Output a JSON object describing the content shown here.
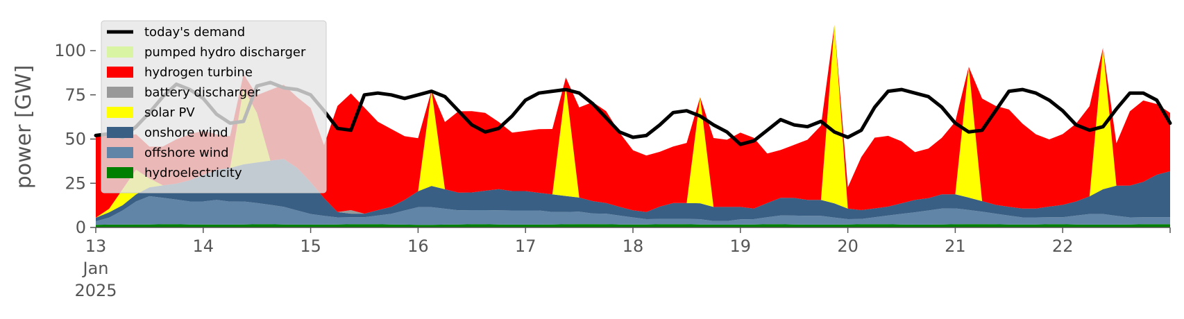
{
  "chart_data": {
    "type": "area",
    "ylabel": "power [GW]",
    "ylim": [
      0,
      120
    ],
    "yticks": [
      0,
      25,
      50,
      75,
      100
    ],
    "x_start": "2025-01-13",
    "x_end": "2025-01-23",
    "x_step_hours": 3,
    "xticks": [
      {
        "x": "2025-01-13",
        "label": "13",
        "label2": "Jan",
        "label3": "2025"
      },
      {
        "x": "2025-01-14",
        "label": "14"
      },
      {
        "x": "2025-01-15",
        "label": "15"
      },
      {
        "x": "2025-01-16",
        "label": "16"
      },
      {
        "x": "2025-01-17",
        "label": "17"
      },
      {
        "x": "2025-01-18",
        "label": "18"
      },
      {
        "x": "2025-01-19",
        "label": "19"
      },
      {
        "x": "2025-01-20",
        "label": "20"
      },
      {
        "x": "2025-01-21",
        "label": "21"
      },
      {
        "x": "2025-01-22",
        "label": "22"
      }
    ],
    "grid": false,
    "legend_position": "top-left",
    "stacked": true,
    "series": [
      {
        "name": "hydroelectricity",
        "color": "#008000",
        "values": [
          1.5,
          1.6,
          1.6,
          1.7,
          1.7,
          1.8,
          1.8,
          1.7,
          1.7,
          1.6,
          1.6,
          1.7,
          1.8,
          1.8,
          1.7,
          1.6,
          1.6,
          1.6,
          1.7,
          1.8,
          1.8,
          1.8,
          1.7,
          1.6,
          1.5,
          1.5,
          1.6,
          1.7,
          1.8,
          1.8,
          1.7,
          1.6,
          1.6,
          1.6,
          1.7,
          1.8,
          1.9,
          1.9,
          1.8,
          1.7,
          1.7,
          1.7,
          1.8,
          1.8,
          1.8,
          1.7,
          1.6,
          1.6,
          1.6,
          1.7,
          1.8,
          1.8,
          1.7,
          1.6,
          1.6,
          1.6,
          1.7,
          1.8,
          1.8,
          1.8,
          1.7,
          1.6,
          1.6,
          1.7,
          1.8,
          1.9,
          1.9,
          1.8,
          1.7,
          1.7,
          1.7,
          1.8,
          1.8,
          1.7,
          1.6,
          1.6,
          1.6,
          1.7,
          1.8,
          1.8,
          1.8
        ]
      },
      {
        "name": "offshore wind",
        "color": "#6185a6",
        "values": [
          2,
          4,
          8,
          13,
          16,
          15,
          14,
          13,
          13,
          14,
          13,
          13,
          12,
          11,
          10,
          8,
          6,
          5,
          4,
          4,
          4,
          5,
          6,
          8,
          10,
          10,
          9,
          8,
          8,
          8,
          8,
          8,
          8,
          8,
          7,
          7,
          7,
          6,
          6,
          5,
          4,
          3,
          3,
          3,
          3,
          3,
          2,
          2,
          3,
          3,
          4,
          5,
          5,
          5,
          5,
          4,
          3,
          3,
          4,
          5,
          6,
          7,
          8,
          9,
          9,
          8,
          7,
          6,
          5,
          4,
          4,
          4,
          4,
          5,
          6,
          6,
          5,
          4,
          4,
          4,
          4
        ]
      },
      {
        "name": "onshore wind",
        "color": "#3a5f84",
        "values": [
          2,
          3,
          3,
          4,
          5,
          7,
          9,
          12,
          15,
          17,
          19,
          21,
          23,
          25,
          27,
          24,
          18,
          10,
          3,
          2,
          2,
          3,
          4,
          6,
          9,
          12,
          11,
          10,
          10,
          11,
          12,
          11,
          11,
          10,
          10,
          9,
          8,
          7,
          6,
          5,
          4,
          4,
          7,
          9,
          9,
          9,
          8,
          8,
          7,
          6,
          8,
          10,
          10,
          9,
          9,
          8,
          6,
          5,
          5,
          5,
          6,
          7,
          7,
          8,
          8,
          7,
          6,
          5,
          5,
          5,
          5,
          6,
          7,
          8,
          10,
          14,
          17,
          18,
          20,
          24,
          26
        ]
      },
      {
        "name": "solar PV",
        "color": "#ffff00",
        "values": [
          0,
          2,
          9,
          14,
          5,
          0,
          0,
          0,
          0,
          0,
          0,
          43,
          28,
          0,
          0,
          0,
          0,
          0,
          0,
          0,
          0,
          0,
          0,
          0,
          0,
          54,
          0,
          0,
          0,
          0,
          0,
          0,
          0,
          0,
          0,
          62,
          0,
          0,
          0,
          0,
          0,
          0,
          0,
          0,
          0,
          60,
          0,
          0,
          0,
          0,
          0,
          0,
          0,
          0,
          0,
          101,
          0,
          0,
          0,
          0,
          0,
          0,
          0,
          0,
          0,
          74,
          0,
          0,
          0,
          0,
          0,
          0,
          0,
          0,
          0,
          80,
          0,
          0,
          0,
          0,
          0
        ]
      },
      {
        "name": "battery discharger",
        "color": "#999999",
        "values": [
          0,
          0,
          0,
          0,
          0,
          0,
          0,
          0,
          0,
          0,
          0,
          0,
          0,
          0,
          0,
          0,
          0,
          0,
          0,
          2,
          0,
          0,
          0,
          0,
          0,
          0,
          0,
          0,
          0,
          0,
          0,
          0,
          0,
          0,
          0,
          0,
          0,
          0,
          0,
          0,
          0,
          0,
          0,
          0,
          0,
          0,
          0,
          0,
          0,
          0,
          0,
          0,
          0,
          0,
          0,
          0,
          0,
          0,
          0,
          0,
          0,
          0,
          0,
          0,
          0,
          0,
          0,
          0,
          0,
          0,
          0,
          0,
          0,
          0,
          0,
          0,
          0,
          0,
          0,
          0,
          0
        ]
      },
      {
        "name": "hydrogen turbine",
        "color": "#ff0000",
        "values": [
          47,
          42,
          30,
          20,
          18,
          22,
          25,
          26,
          25,
          20,
          18,
          8,
          10,
          40,
          42,
          40,
          42,
          30,
          60,
          66,
          60,
          50,
          44,
          36,
          30,
          0,
          38,
          46,
          46,
          44,
          38,
          33,
          34,
          36,
          37,
          5,
          51,
          56,
          52,
          42,
          34,
          32,
          31,
          32,
          34,
          0,
          39,
          38,
          42,
          40,
          28,
          27,
          30,
          34,
          42,
          0,
          12,
          30,
          40,
          40,
          35,
          27,
          28,
          32,
          41,
          0,
          58,
          56,
          55,
          48,
          42,
          38,
          40,
          44,
          51,
          0,
          24,
          42,
          46,
          40,
          33
        ]
      },
      {
        "name": "pumped hydro discharger",
        "color": "#d9f5a3",
        "values": [
          0,
          0,
          0,
          0,
          0,
          0,
          0,
          0,
          0,
          0,
          0,
          0,
          0,
          0,
          0,
          0,
          0,
          0,
          0,
          0,
          0,
          0,
          0,
          0,
          0,
          0,
          0,
          0,
          0,
          0,
          0,
          0,
          0,
          0,
          0,
          0,
          0,
          0,
          0,
          0,
          0,
          0,
          0,
          0,
          0,
          0,
          0,
          0,
          0,
          0,
          0,
          0,
          0,
          0,
          0,
          0,
          0,
          0,
          0,
          0,
          0,
          0,
          0,
          0,
          0,
          0,
          0,
          0,
          0,
          0,
          0,
          0,
          0,
          0,
          0,
          0,
          0,
          0,
          0,
          0,
          0
        ]
      },
      {
        "name": "today's demand",
        "color": "#000000",
        "type": "line",
        "values": [
          52,
          53,
          51,
          57,
          65,
          74,
          81,
          78,
          73,
          64,
          59,
          60,
          80,
          82,
          79,
          78,
          75,
          66,
          56,
          55,
          75,
          76,
          75,
          73,
          75,
          77,
          74,
          66,
          58,
          54,
          56,
          63,
          72,
          76,
          77,
          78,
          76,
          70,
          62,
          54,
          51,
          52,
          58,
          65,
          66,
          63,
          58,
          54,
          47,
          49,
          55,
          61,
          58,
          57,
          60,
          54,
          51,
          55,
          68,
          77,
          78,
          76,
          74,
          68,
          59,
          54,
          55,
          66,
          77,
          78,
          76,
          72,
          66,
          58,
          55,
          57,
          67,
          76,
          76,
          72,
          59
        ]
      }
    ]
  }
}
